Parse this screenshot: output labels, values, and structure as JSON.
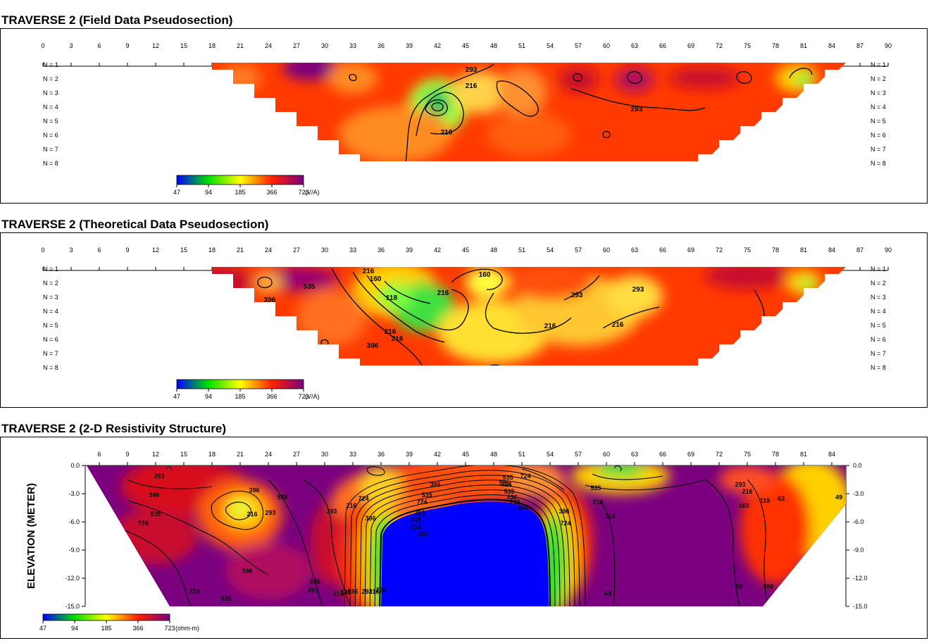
{
  "panels": [
    {
      "title": "TRAVERSE 2 (Field Data Pseudosection)",
      "x_ticks": [
        "0",
        "3",
        "6",
        "9",
        "12",
        "15",
        "18",
        "21",
        "24",
        "27",
        "30",
        "33",
        "36",
        "39",
        "42",
        "45",
        "48",
        "51",
        "54",
        "57",
        "60",
        "63",
        "66",
        "69",
        "72",
        "75",
        "78",
        "81",
        "84",
        "87",
        "90"
      ],
      "levels": [
        "N = 1",
        "N = 2",
        "N = 3",
        "N = 4",
        "N = 5",
        "N = 6",
        "N = 7",
        "N = 8"
      ],
      "contour_labels": [
        "293",
        "216",
        "293",
        "216"
      ],
      "colorbar": {
        "ticks": [
          "47",
          "94",
          "185",
          "366",
          "723"
        ],
        "unit": "(V/A)"
      }
    },
    {
      "title": "TRAVERSE 2 (Theoretical Data Pseudosection)",
      "x_ticks": [
        "0",
        "3",
        "6",
        "9",
        "12",
        "15",
        "18",
        "21",
        "24",
        "27",
        "30",
        "33",
        "36",
        "39",
        "42",
        "45",
        "48",
        "51",
        "54",
        "57",
        "60",
        "63",
        "66",
        "69",
        "72",
        "75",
        "78",
        "81",
        "84",
        "87",
        "90"
      ],
      "levels": [
        "N = 1",
        "N = 2",
        "N = 3",
        "N = 4",
        "N = 5",
        "N = 6",
        "N = 7",
        "N = 8"
      ],
      "contour_labels": [
        "293",
        "216",
        "160",
        "118",
        "216",
        "160",
        "293",
        "396",
        "216",
        "293",
        "216",
        "535",
        "216",
        "396",
        "216"
      ],
      "colorbar": {
        "ticks": [
          "47",
          "94",
          "185",
          "366",
          "723"
        ],
        "unit": "(V/A)"
      }
    },
    {
      "title": "TRAVERSE 2 (2-D Resistivity Structure)",
      "x_ticks": [
        "6",
        "9",
        "12",
        "15",
        "18",
        "21",
        "24",
        "27",
        "30",
        "33",
        "36",
        "39",
        "42",
        "45",
        "48",
        "51",
        "54",
        "57",
        "60",
        "63",
        "66",
        "69",
        "72",
        "75",
        "78",
        "81",
        "84"
      ],
      "y_label": "ELEVATION (METER)",
      "y_ticks": [
        "0.0",
        "-3.0",
        "-6.0",
        "-9.0",
        "-12.0",
        "-15.0"
      ],
      "contour_labels": [
        "293",
        "396",
        "535",
        "724",
        "396",
        "216",
        "293",
        "535",
        "396",
        "724",
        "535",
        "396",
        "293",
        "216",
        "724",
        "396",
        "293",
        "216",
        "535",
        "396",
        "293",
        "216",
        "724",
        "535",
        "724",
        "396",
        "535",
        "216",
        "293",
        "396",
        "535",
        "724",
        "535",
        "336",
        "293",
        "216",
        "396",
        "724",
        "535",
        "216",
        "118",
        "63",
        "49",
        "396",
        "293",
        "216",
        "160",
        "118",
        "63",
        "49",
        "724",
        "535"
      ],
      "colorbar": {
        "ticks": [
          "47",
          "94",
          "185",
          "366",
          "723"
        ],
        "unit": "(ohm-m)"
      }
    }
  ],
  "colors": {
    "low": "#0000ff",
    "mid_low": "#00e000",
    "mid": "#ffff00",
    "mid_high": "#ff2000",
    "high": "#7a0080"
  }
}
